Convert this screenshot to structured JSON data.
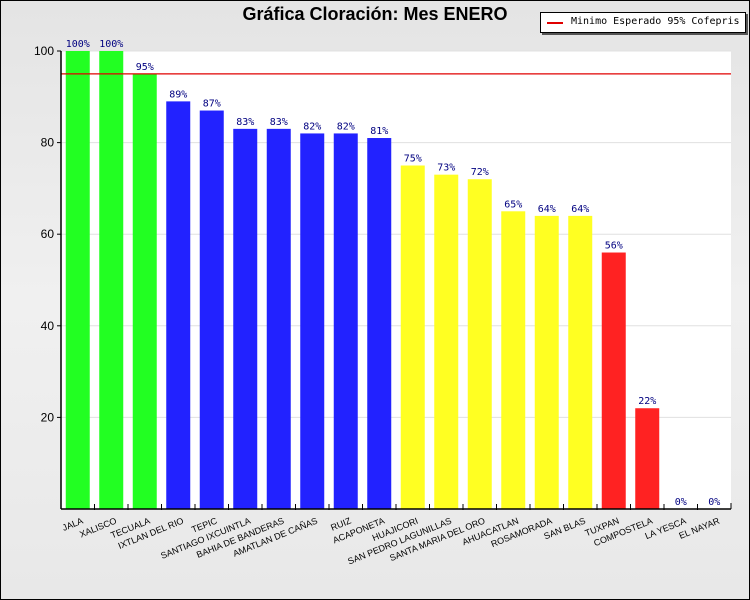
{
  "chart_data": {
    "type": "bar",
    "title": "Gráfica Cloración: Mes ENERO",
    "xlabel": "",
    "ylabel": "",
    "ylim": [
      0,
      100
    ],
    "yticks": [
      20,
      40,
      60,
      80,
      100
    ],
    "grid": true,
    "categories": [
      "JALA",
      "XALISCO",
      "TECUALA",
      "IXTLAN DEL RIO",
      "TEPIC",
      "SANTIAGO IXCUINTLA",
      "BAHIA DE BANDERAS",
      "AMATLAN DE CAÑAS",
      "RUIZ",
      "ACAPONETA",
      "HUAJICORI",
      "SAN PEDRO LAGUNILLAS",
      "SANTA MARIA DEL ORO",
      "AHUACATLAN",
      "ROSAMORADA",
      "SAN BLAS",
      "TUXPAN",
      "COMPOSTELA",
      "LA YESCA",
      "EL NAYAR"
    ],
    "values": [
      100,
      100,
      95,
      89,
      87,
      83,
      83,
      82,
      82,
      81,
      75,
      73,
      72,
      65,
      64,
      64,
      56,
      22,
      0,
      0
    ],
    "data_labels": [
      "100%",
      "100%",
      "95%",
      "89%",
      "87%",
      "83%",
      "83%",
      "82%",
      "82%",
      "81%",
      "75%",
      "73%",
      "72%",
      "65%",
      "64%",
      "64%",
      "56%",
      "22%",
      "0%",
      "0%"
    ],
    "bar_colors": [
      "#22ff22",
      "#22ff22",
      "#22ff22",
      "#2222ff",
      "#2222ff",
      "#2222ff",
      "#2222ff",
      "#2222ff",
      "#2222ff",
      "#2222ff",
      "#ffff22",
      "#ffff22",
      "#ffff22",
      "#ffff22",
      "#ffff22",
      "#ffff22",
      "#ff2222",
      "#ff2222",
      "#ff2222",
      "#ff2222"
    ],
    "reference_line": {
      "value": 95,
      "color": "#e00000",
      "label": "Minimo Esperado 95% Cofepris"
    },
    "legend_position": "top-right"
  }
}
